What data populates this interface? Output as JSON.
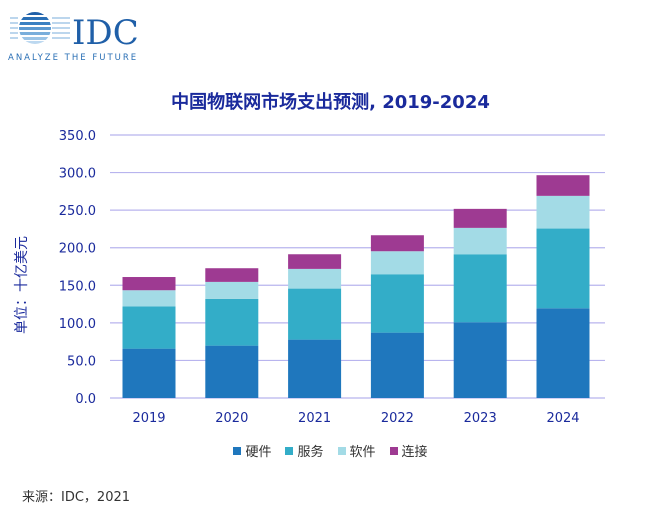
{
  "logo": {
    "text": "IDC",
    "tagline": "ANALYZE THE FUTURE"
  },
  "source": "来源：IDC，2021",
  "chart_data": {
    "type": "bar",
    "stacked": true,
    "title": "中国物联网市场支出预测, 2019-2024",
    "ylabel": "单位：十亿美元",
    "xlabel": "",
    "ylim": [
      0,
      350
    ],
    "yticks": [
      "0.0",
      "50.0",
      "100.0",
      "150.0",
      "200.0",
      "250.0",
      "300.0",
      "350.0"
    ],
    "grid": true,
    "legend_position": "bottom",
    "categories": [
      "2019",
      "2020",
      "2021",
      "2022",
      "2023",
      "2024"
    ],
    "series": [
      {
        "name": "硬件",
        "color": "#1f77bd",
        "values": [
          65.7,
          69.7,
          77.7,
          87.0,
          100.8,
          119.4
        ]
      },
      {
        "name": "服务",
        "color": "#33adc8",
        "values": [
          56.3,
          62.1,
          67.9,
          77.7,
          90.5,
          106.1
        ]
      },
      {
        "name": "软件",
        "color": "#a3dbe6",
        "values": [
          21.4,
          22.7,
          26.2,
          30.6,
          35.1,
          43.5
        ]
      },
      {
        "name": "连接",
        "color": "#9e3a92",
        "values": [
          17.6,
          18.2,
          19.5,
          21.3,
          25.3,
          27.5
        ]
      }
    ]
  }
}
